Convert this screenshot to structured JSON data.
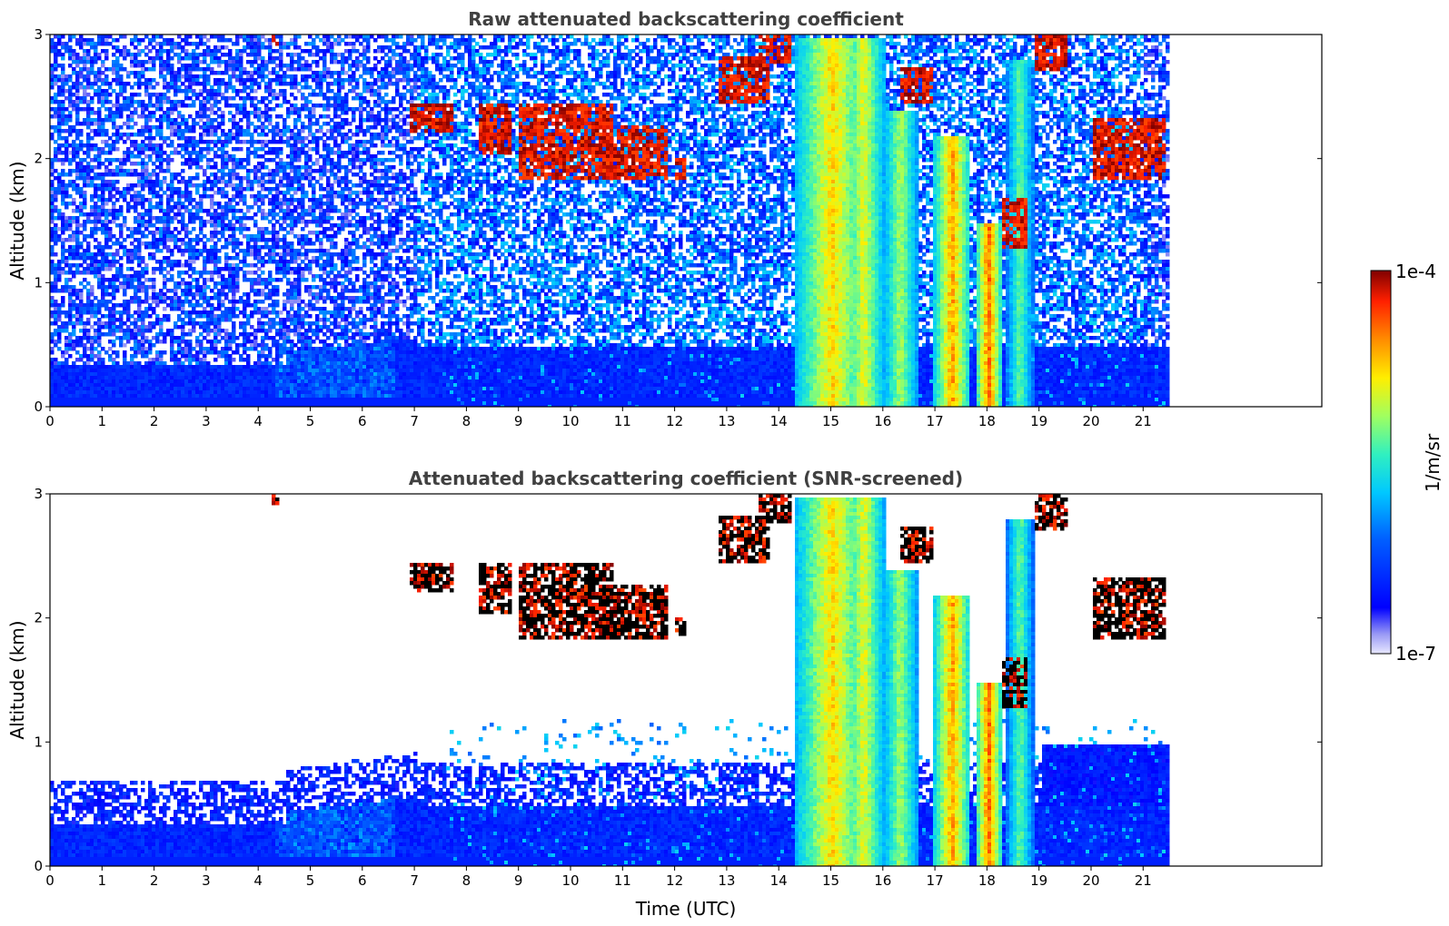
{
  "chart_data": [
    {
      "type": "heatmap",
      "title": "Raw attenuated backscattering coefficient",
      "xlabel": "",
      "ylabel": "Altitude (km)",
      "xlim": [
        0,
        24
      ],
      "ylim": [
        0,
        3
      ],
      "x_ticks": [
        "0",
        "1",
        "2",
        "3",
        "4",
        "5",
        "6",
        "7",
        "8",
        "9",
        "10",
        "11",
        "12",
        "13",
        "14",
        "15",
        "16",
        "17",
        "18",
        "19",
        "20",
        "21"
      ],
      "y_ticks": [
        "0",
        "1",
        "2",
        "3"
      ],
      "data_extent_hours": [
        0,
        21.45
      ],
      "screened": false
    },
    {
      "type": "heatmap",
      "title": "Attenuated backscattering coefficient (SNR-screened)",
      "xlabel": "Time (UTC)",
      "ylabel": "Altitude (km)",
      "xlim": [
        0,
        24
      ],
      "ylim": [
        0,
        3
      ],
      "x_ticks": [
        "0",
        "1",
        "2",
        "3",
        "4",
        "5",
        "6",
        "7",
        "8",
        "9",
        "10",
        "11",
        "12",
        "13",
        "14",
        "15",
        "16",
        "17",
        "18",
        "19",
        "20",
        "21"
      ],
      "y_ticks": [
        "0",
        "1",
        "2",
        "3"
      ],
      "data_extent_hours": [
        0,
        21.45
      ],
      "screened": true
    }
  ],
  "colorbar": {
    "label": "1/m/sr",
    "max_label": "1e-4",
    "min_label": "1e-7",
    "scale": "log",
    "range": [
      1e-07,
      0.0001
    ],
    "colormap": "jet"
  },
  "colors": {
    "title": "#404040",
    "low": "#e8e8ff",
    "high": "#800000"
  }
}
